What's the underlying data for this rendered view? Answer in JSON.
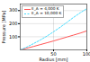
{
  "chart_data": {
    "type": "line",
    "xlabel": "Radius [mm]",
    "ylabel": "Pressure [MPa]",
    "x": [
      0,
      10,
      20,
      30,
      40,
      50,
      60,
      70,
      80,
      90,
      100
    ],
    "series": [
      {
        "name": "E_A = 4,000 K",
        "color": "#ff5555",
        "line_style": "solid",
        "values": [
          0,
          13,
          26,
          40,
          54,
          68,
          83,
          98,
          113,
          128,
          145
        ]
      },
      {
        "name": "E_A = 10,000 K",
        "color": "#44ddff",
        "line_style": "dashed",
        "values": [
          0,
          22,
          48,
          75,
          105,
          138,
          173,
          210,
          248,
          283,
          315
        ]
      }
    ],
    "xlim": [
      0,
      100
    ],
    "xticks": [
      50,
      100
    ],
    "ylim": [
      0,
      350
    ],
    "yticks": [
      100,
      200,
      300
    ],
    "grid": true,
    "legend": "upper left"
  }
}
